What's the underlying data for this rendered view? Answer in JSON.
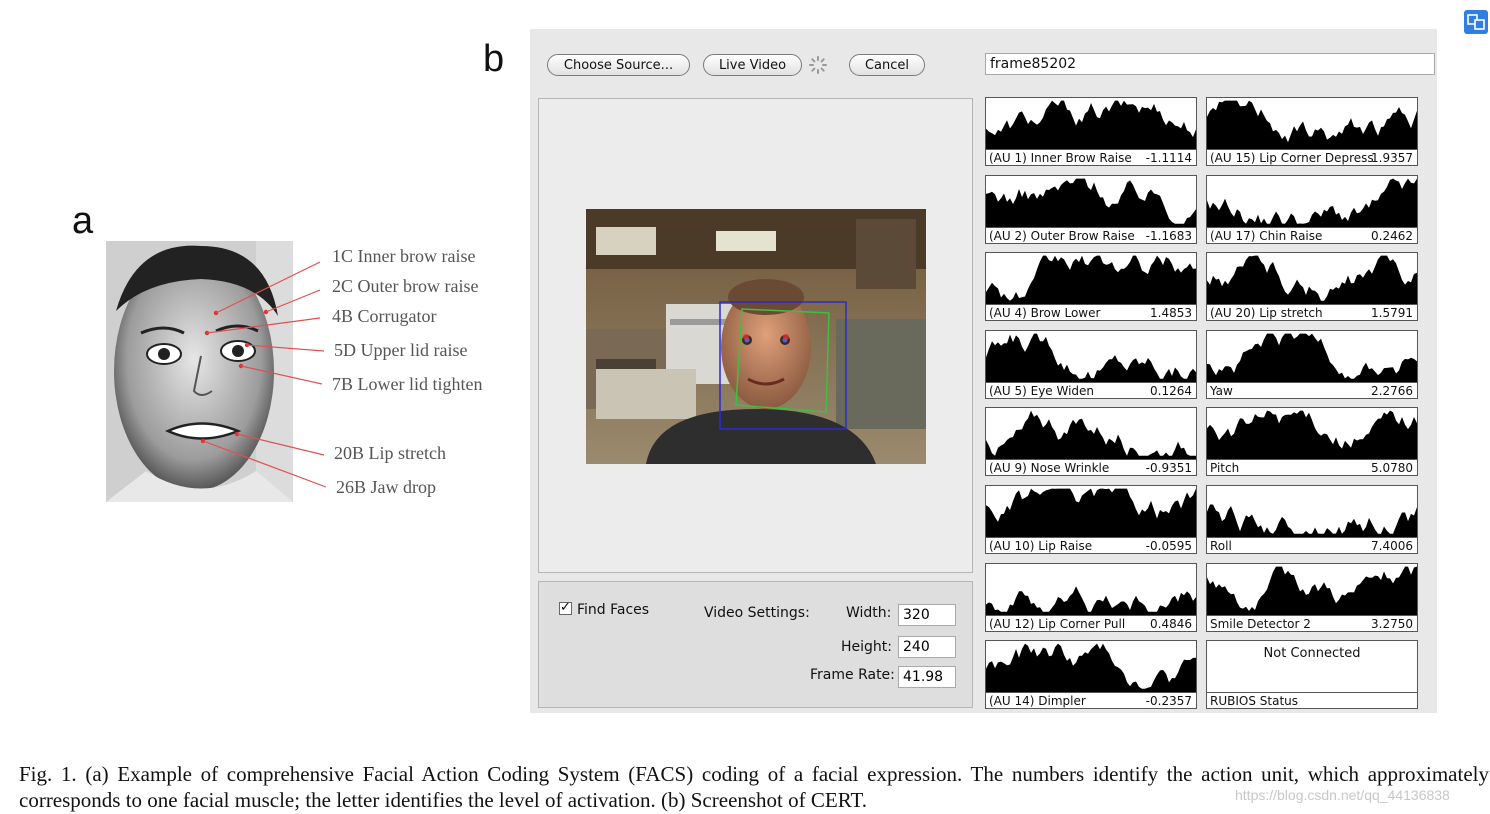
{
  "panel_letters": {
    "a": "a",
    "b": "b"
  },
  "facs_labels": [
    "1C Inner brow raise",
    "2C Outer brow raise",
    "4B Corrugator",
    "5D Upper lid raise",
    "7B Lower lid tighten",
    "20B Lip stretch",
    "26B Jaw drop"
  ],
  "toolbar": {
    "choose_source": "Choose Source...",
    "live_video": "Live Video",
    "cancel": "Cancel",
    "frame_value": "frame85202"
  },
  "settings": {
    "find_faces": "Find Faces",
    "find_faces_checked": true,
    "video_settings": "Video Settings:",
    "width_label": "Width:",
    "width_value": "320",
    "height_label": "Height:",
    "height_value": "240",
    "frame_rate_label": "Frame Rate:",
    "frame_rate_value": "41.98"
  },
  "graphs_left": [
    {
      "label": "(AU 1) Inner Brow Raise",
      "value": "-1.1114"
    },
    {
      "label": "(AU 2) Outer Brow Raise",
      "value": "-1.1683"
    },
    {
      "label": "(AU 4) Brow Lower",
      "value": "1.4853"
    },
    {
      "label": "(AU 5) Eye Widen",
      "value": "0.1264"
    },
    {
      "label": "(AU 9) Nose Wrinkle",
      "value": "-0.9351"
    },
    {
      "label": "(AU 10) Lip Raise",
      "value": "-0.0595"
    },
    {
      "label": "(AU 12) Lip Corner Pull",
      "value": "0.4846"
    },
    {
      "label": "(AU 14) Dimpler",
      "value": "-0.2357"
    }
  ],
  "graphs_right": [
    {
      "label": "(AU 15) Lip Corner Depress",
      "value": "1.9357"
    },
    {
      "label": "(AU 17) Chin Raise",
      "value": "0.2462"
    },
    {
      "label": "(AU 20) Lip stretch",
      "value": "1.5791"
    },
    {
      "label": "Yaw",
      "value": "2.2766"
    },
    {
      "label": "Pitch",
      "value": "5.0780"
    },
    {
      "label": "Roll",
      "value": "7.4006"
    },
    {
      "label": "Smile Detector 2",
      "value": "3.2750"
    }
  ],
  "status": {
    "text": "Not Connected",
    "label": "RUBIOS Status"
  },
  "caption": "Fig. 1.   (a) Example of comprehensive Facial Action Coding System (FACS) coding of a facial expression. The numbers identify the action unit, which approximately corresponds to one facial muscle; the letter identifies the level of activation. (b) Screenshot of CERT.",
  "watermark": "https://blog.csdn.net/qq_44136838",
  "colors": {
    "app_bg": "#e8e8e8",
    "graph_fill": "#000000",
    "face_box": "#2b2bd0",
    "face_outline": "#3fbf3f",
    "marker": "#e03030"
  }
}
